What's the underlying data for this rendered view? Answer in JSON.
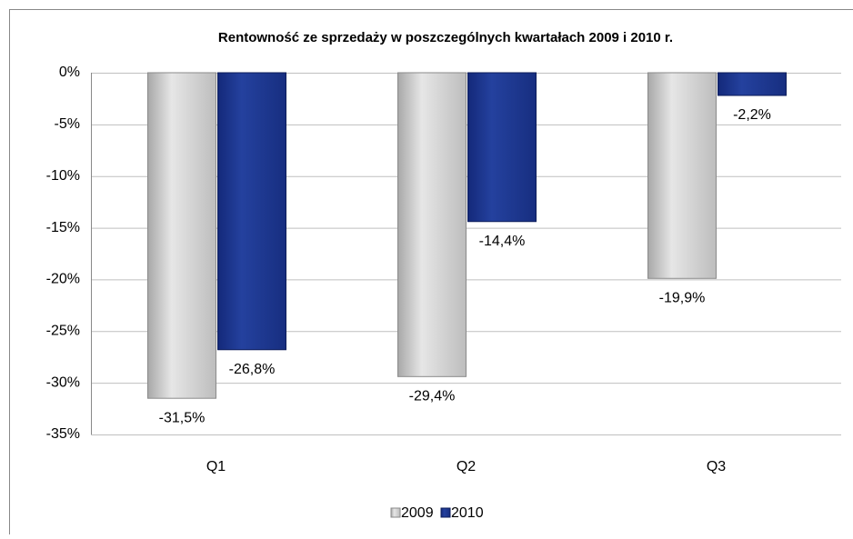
{
  "chart_data": {
    "type": "bar",
    "title": "Rentowność ze sprzedaży w poszczególnych kwartałach 2009 i 2010 r.",
    "categories": [
      "Q1",
      "Q2",
      "Q3"
    ],
    "series": [
      {
        "name": "2009",
        "color": "#d0d0d0",
        "values": [
          -31.5,
          -29.4,
          -19.9
        ],
        "value_labels": [
          "-31,5%",
          "-29,4%",
          "-19,9%"
        ]
      },
      {
        "name": "2010",
        "color": "#1f3a8f",
        "values": [
          -26.8,
          -14.4,
          -2.2
        ],
        "value_labels": [
          "-26,8%",
          "-14,4%",
          "-2,2%"
        ]
      }
    ],
    "ylim": [
      -35,
      0
    ],
    "yticks": [
      {
        "value": 0,
        "label": "0%"
      },
      {
        "value": -5,
        "label": "-5%"
      },
      {
        "value": -10,
        "label": "-10%"
      },
      {
        "value": -15,
        "label": "-15%"
      },
      {
        "value": -20,
        "label": "-20%"
      },
      {
        "value": -25,
        "label": "-25%"
      },
      {
        "value": -30,
        "label": "-30%"
      },
      {
        "value": -35,
        "label": "-35%"
      }
    ],
    "grid": true,
    "legend": "bottom"
  }
}
